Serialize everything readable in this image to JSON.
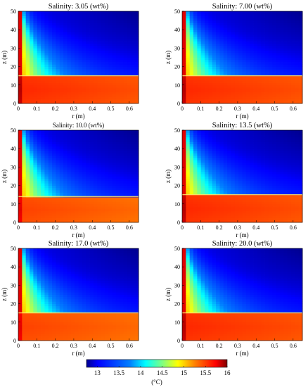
{
  "chart_data": {
    "type": "heatmap",
    "colorbar": {
      "min": 12.75,
      "max": 16,
      "ticks": [
        "13",
        "13.5",
        "14",
        "14.5",
        "15",
        "15.5",
        "16"
      ],
      "tick_values": [
        13,
        13.5,
        14,
        14.5,
        15,
        15.5,
        16
      ],
      "unit_label": "(°C)",
      "colormap": [
        "#00008f",
        "#0000ff",
        "#0080ff",
        "#00ffff",
        "#80ff80",
        "#ffff00",
        "#ff8000",
        "#ff0000",
        "#800000"
      ]
    },
    "panels": [
      {
        "title": "Salinity: 3.05 (wt%)",
        "salinity": 3.05,
        "interface_z": 15,
        "lower_temp": 15.6,
        "xlabel": "r (m)",
        "ylabel": "z (m)"
      },
      {
        "title": "Salinity: 7.00 (wt%)",
        "salinity": 7.0,
        "interface_z": 15,
        "lower_temp": 15.6,
        "xlabel": "r (m)",
        "ylabel": "z (m)"
      },
      {
        "title": "Salinity: 10.0 (wt%)",
        "salinity": 10.0,
        "interface_z": 14,
        "lower_temp": 15.5,
        "xlabel": "r (m)",
        "ylabel": "z (m)"
      },
      {
        "title": "Salinity: 13.5 (wt%)",
        "salinity": 13.5,
        "interface_z": 15,
        "lower_temp": 15.6,
        "xlabel": "r (m)",
        "ylabel": "z (m)"
      },
      {
        "title": "Salinity: 17.0 (wt%)",
        "salinity": 17.0,
        "interface_z": 15,
        "lower_temp": 15.5,
        "xlabel": "r (m)",
        "ylabel": "z (m)"
      },
      {
        "title": "Salinity: 20.0 (wt%)",
        "salinity": 20.0,
        "interface_z": 15,
        "lower_temp": 15.6,
        "xlabel": "r (m)",
        "ylabel": "z (m)"
      }
    ],
    "x_range": [
      0,
      0.65
    ],
    "y_range": [
      0,
      50
    ],
    "x_ticks": [
      "0",
      "0.1",
      "0.2",
      "0.3",
      "0.4",
      "0.5",
      "0.6"
    ],
    "x_tick_values": [
      0,
      0.1,
      0.2,
      0.3,
      0.4,
      0.5,
      0.6
    ],
    "y_ticks": [
      "0",
      "10",
      "20",
      "30",
      "40",
      "50"
    ],
    "y_tick_values": [
      0,
      10,
      20,
      30,
      40,
      50
    ]
  }
}
